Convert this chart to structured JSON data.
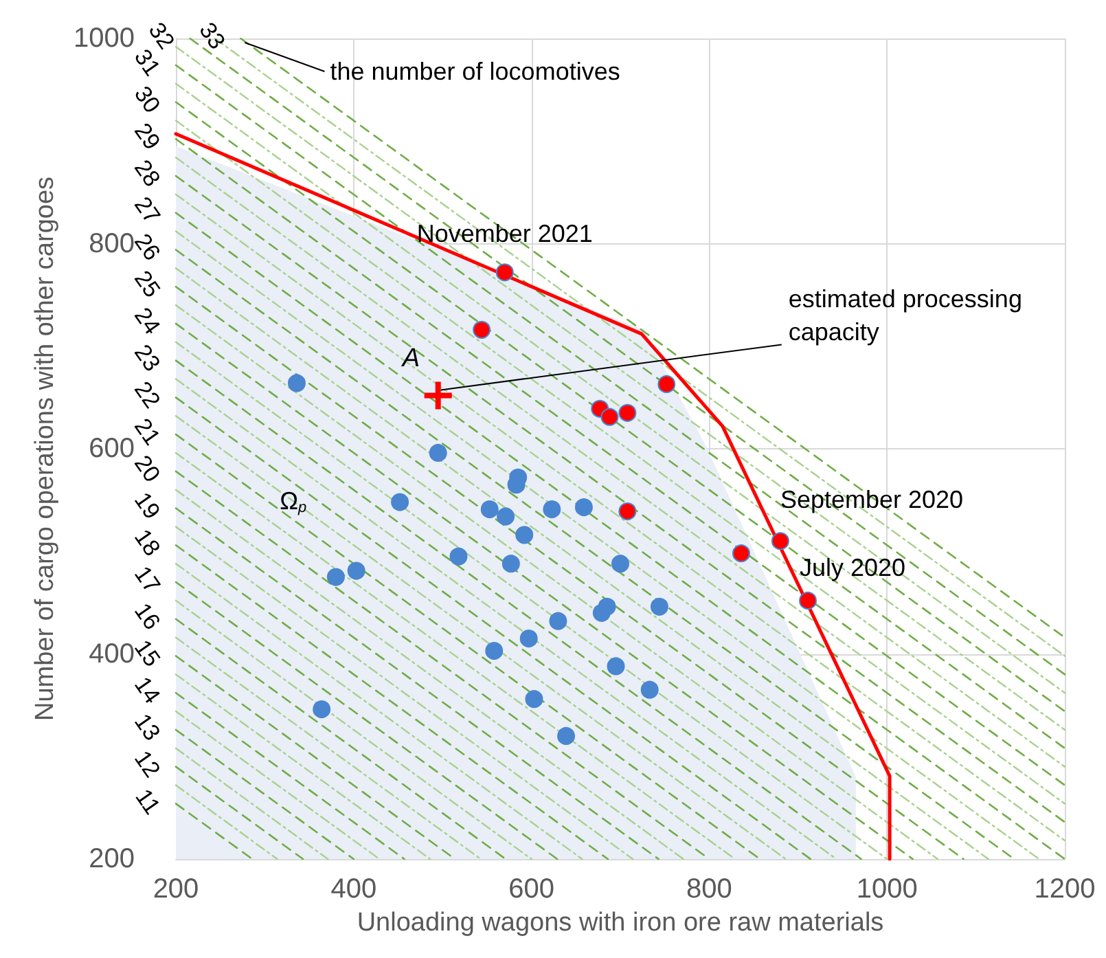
{
  "chart_data": {
    "type": "scatter",
    "xlabel": "Unloading wagons with iron ore raw materials",
    "ylabel": "Number of cargo operations with other cargoes",
    "xlim": [
      200,
      1200
    ],
    "ylim": [
      200,
      1000
    ],
    "xticks": [
      200,
      400,
      600,
      800,
      1000,
      1200
    ],
    "yticks": [
      200,
      400,
      600,
      800,
      1000
    ],
    "grid": true,
    "annotations": [
      {
        "text": "the number of locomotives",
        "x": 273,
        "y": 1000
      },
      {
        "text": "November 2021",
        "x": 570,
        "y": 772
      },
      {
        "text": "estimated processing capacity",
        "x": 495,
        "y": 652
      },
      {
        "text": "September 2020",
        "x": 880,
        "y": 510
      },
      {
        "text": "July 2020",
        "x": 911,
        "y": 452
      },
      {
        "text": "Ω$_{p}$",
        "x": 332,
        "y": 549
      }
    ],
    "series": [
      {
        "type": "area",
        "color": "#e9eef7",
        "marker": "none",
        "x": [
          200,
          726,
          798,
          965,
          965
        ],
        "values": [
          895,
          716,
          600,
          280,
          200
        ]
      },
      {
        "type": "line",
        "name": "11",
        "color": "#70ad47",
        "line_style": "dashed",
        "marker": "none",
        "x": [
          200,
          286
        ],
        "values": [
          254,
          200
        ]
      },
      {
        "type": "line",
        "name": "12",
        "color": "#70ad47",
        "line_style": "dashed",
        "marker": "none",
        "x": [
          200,
          343
        ],
        "values": [
          290,
          200
        ]
      },
      {
        "type": "line",
        "name": "13",
        "color": "#70ad47",
        "line_style": "dashed",
        "marker": "none",
        "x": [
          200,
          400
        ],
        "values": [
          326,
          200
        ]
      },
      {
        "type": "line",
        "name": "14",
        "color": "#70ad47",
        "line_style": "dashed",
        "marker": "none",
        "x": [
          200,
          457
        ],
        "values": [
          362,
          200
        ]
      },
      {
        "type": "line",
        "name": "15",
        "color": "#70ad47",
        "line_style": "dashed",
        "marker": "none",
        "x": [
          200,
          514
        ],
        "values": [
          398,
          200
        ]
      },
      {
        "type": "line",
        "name": "16",
        "color": "#70ad47",
        "line_style": "dashed",
        "marker": "none",
        "x": [
          200,
          571
        ],
        "values": [
          434,
          200
        ]
      },
      {
        "type": "line",
        "name": "17",
        "color": "#70ad47",
        "line_style": "dashed",
        "marker": "none",
        "x": [
          200,
          629
        ],
        "values": [
          470,
          200
        ]
      },
      {
        "type": "line",
        "name": "18",
        "color": "#70ad47",
        "line_style": "dashed",
        "marker": "none",
        "x": [
          200,
          686
        ],
        "values": [
          506,
          200
        ]
      },
      {
        "type": "line",
        "name": "19",
        "color": "#70ad47",
        "line_style": "dashed",
        "marker": "none",
        "x": [
          200,
          743
        ],
        "values": [
          542,
          200
        ]
      },
      {
        "type": "line",
        "name": "20",
        "color": "#70ad47",
        "line_style": "dashed",
        "marker": "none",
        "x": [
          200,
          800
        ],
        "values": [
          578,
          200
        ]
      },
      {
        "type": "line",
        "name": "21",
        "color": "#70ad47",
        "line_style": "dashed",
        "marker": "none",
        "x": [
          200,
          857
        ],
        "values": [
          614,
          200
        ]
      },
      {
        "type": "line",
        "name": "22",
        "color": "#70ad47",
        "line_style": "dashed",
        "marker": "none",
        "x": [
          200,
          914
        ],
        "values": [
          650,
          200
        ]
      },
      {
        "type": "line",
        "name": "23",
        "color": "#70ad47",
        "line_style": "dashed",
        "marker": "none",
        "x": [
          200,
          971
        ],
        "values": [
          686,
          200
        ]
      },
      {
        "type": "line",
        "name": "24",
        "color": "#70ad47",
        "line_style": "dashed",
        "marker": "none",
        "x": [
          200,
          1029
        ],
        "values": [
          722,
          200
        ]
      },
      {
        "type": "line",
        "name": "25",
        "color": "#70ad47",
        "line_style": "dashed",
        "marker": "none",
        "x": [
          200,
          1086
        ],
        "values": [
          758,
          200
        ]
      },
      {
        "type": "line",
        "name": "26",
        "color": "#70ad47",
        "line_style": "dashed",
        "marker": "none",
        "x": [
          200,
          1143
        ],
        "values": [
          794,
          200
        ]
      },
      {
        "type": "line",
        "name": "27",
        "color": "#70ad47",
        "line_style": "dashed",
        "marker": "none",
        "x": [
          200,
          1200
        ],
        "values": [
          830,
          200
        ]
      },
      {
        "type": "line",
        "name": "28",
        "color": "#70ad47",
        "line_style": "dashed",
        "marker": "none",
        "x": [
          200,
          1200
        ],
        "values": [
          866,
          236
        ]
      },
      {
        "type": "line",
        "name": "29",
        "color": "#70ad47",
        "line_style": "dashed",
        "marker": "none",
        "x": [
          200,
          1200
        ],
        "values": [
          902,
          272
        ]
      },
      {
        "type": "line",
        "name": "30",
        "color": "#70ad47",
        "line_style": "dashed",
        "marker": "none",
        "x": [
          200,
          1200
        ],
        "values": [
          938,
          308
        ]
      },
      {
        "type": "line",
        "name": "31",
        "color": "#70ad47",
        "line_style": "dashed",
        "marker": "none",
        "x": [
          200,
          1200
        ],
        "values": [
          974,
          344
        ]
      },
      {
        "type": "line",
        "name": "32",
        "color": "#70ad47",
        "line_style": "dashed",
        "marker": "none",
        "x": [
          216,
          1200
        ],
        "values": [
          1000,
          380
        ]
      },
      {
        "type": "line",
        "name": "33",
        "color": "#70ad47",
        "line_style": "dashed",
        "marker": "none",
        "x": [
          273,
          1200
        ],
        "values": [
          1000,
          416
        ]
      },
      {
        "type": "line",
        "color": "#a9d18e",
        "line_style": "dotted",
        "marker": "none",
        "x": [
          200,
          314
        ],
        "values": [
          272,
          200
        ]
      },
      {
        "type": "line",
        "color": "#a9d18e",
        "line_style": "dotted",
        "marker": "none",
        "x": [
          200,
          371
        ],
        "values": [
          308,
          200
        ]
      },
      {
        "type": "line",
        "color": "#a9d18e",
        "line_style": "dotted",
        "marker": "none",
        "x": [
          200,
          429
        ],
        "values": [
          344,
          200
        ]
      },
      {
        "type": "line",
        "color": "#a9d18e",
        "line_style": "dotted",
        "marker": "none",
        "x": [
          200,
          486
        ],
        "values": [
          380,
          200
        ]
      },
      {
        "type": "line",
        "color": "#a9d18e",
        "line_style": "dotted",
        "marker": "none",
        "x": [
          200,
          543
        ],
        "values": [
          416,
          200
        ]
      },
      {
        "type": "line",
        "color": "#a9d18e",
        "line_style": "dotted",
        "marker": "none",
        "x": [
          200,
          600
        ],
        "values": [
          452,
          200
        ]
      },
      {
        "type": "line",
        "color": "#a9d18e",
        "line_style": "dotted",
        "marker": "none",
        "x": [
          200,
          657
        ],
        "values": [
          488,
          200
        ]
      },
      {
        "type": "line",
        "color": "#a9d18e",
        "line_style": "dotted",
        "marker": "none",
        "x": [
          200,
          714
        ],
        "values": [
          524,
          200
        ]
      },
      {
        "type": "line",
        "color": "#a9d18e",
        "line_style": "dotted",
        "marker": "none",
        "x": [
          200,
          771
        ],
        "values": [
          560,
          200
        ]
      },
      {
        "type": "line",
        "color": "#a9d18e",
        "line_style": "dotted",
        "marker": "none",
        "x": [
          200,
          829
        ],
        "values": [
          596,
          200
        ]
      },
      {
        "type": "line",
        "color": "#a9d18e",
        "line_style": "dotted",
        "marker": "none",
        "x": [
          200,
          886
        ],
        "values": [
          632,
          200
        ]
      },
      {
        "type": "line",
        "color": "#a9d18e",
        "line_style": "dotted",
        "marker": "none",
        "x": [
          200,
          943
        ],
        "values": [
          668,
          200
        ]
      },
      {
        "type": "line",
        "color": "#a9d18e",
        "line_style": "dotted",
        "marker": "none",
        "x": [
          200,
          1000
        ],
        "values": [
          704,
          200
        ]
      },
      {
        "type": "line",
        "color": "#a9d18e",
        "line_style": "dotted",
        "marker": "none",
        "x": [
          200,
          1057
        ],
        "values": [
          740,
          200
        ]
      },
      {
        "type": "line",
        "color": "#a9d18e",
        "line_style": "dotted",
        "marker": "none",
        "x": [
          200,
          1114
        ],
        "values": [
          776,
          200
        ]
      },
      {
        "type": "line",
        "color": "#a9d18e",
        "line_style": "dotted",
        "marker": "none",
        "x": [
          200,
          1171
        ],
        "values": [
          812,
          200
        ]
      },
      {
        "type": "line",
        "color": "#a9d18e",
        "line_style": "dotted",
        "marker": "none",
        "x": [
          200,
          1200
        ],
        "values": [
          848,
          218
        ]
      },
      {
        "type": "line",
        "color": "#a9d18e",
        "line_style": "dotted",
        "marker": "none",
        "x": [
          200,
          1200
        ],
        "values": [
          884,
          254
        ]
      },
      {
        "type": "line",
        "color": "#a9d18e",
        "line_style": "dotted",
        "marker": "none",
        "x": [
          200,
          1200
        ],
        "values": [
          920,
          290
        ]
      },
      {
        "type": "line",
        "color": "#a9d18e",
        "line_style": "dotted",
        "marker": "none",
        "x": [
          200,
          1200
        ],
        "values": [
          956,
          326
        ]
      },
      {
        "type": "line",
        "color": "#a9d18e",
        "line_style": "dotted",
        "marker": "none",
        "x": [
          200,
          1200
        ],
        "values": [
          992,
          362
        ]
      },
      {
        "type": "line",
        "color": "#a9d18e",
        "line_style": "dotted",
        "marker": "none",
        "x": [
          244,
          1200
        ],
        "values": [
          1000,
          398
        ]
      },
      {
        "type": "line",
        "color": "#ff0000",
        "line_style": "solid",
        "marker": "none",
        "x": [
          200,
          724,
          815,
          1003,
          1003
        ],
        "values": [
          907,
          712,
          622,
          281,
          200
        ]
      },
      {
        "type": "scatter",
        "color": "#4a86d0",
        "marker": "circle",
        "x": [
          336,
          495,
          585,
          583,
          452,
          553,
          571,
          592,
          518,
          577,
          380,
          403,
          623,
          659,
          700,
          685,
          679,
          744,
          695,
          733,
          639,
          630,
          597,
          558,
          603,
          364
        ],
        "values": [
          664,
          596,
          572,
          565,
          548,
          541,
          534,
          516,
          495,
          488,
          475,
          481,
          541,
          543,
          488,
          446,
          440,
          446,
          388,
          365,
          320,
          432,
          415,
          403,
          356,
          346
        ]
      },
      {
        "type": "scatter",
        "color": "#ff0000",
        "marker": "circle",
        "x": [
          570,
          544,
          752,
          677,
          688,
          708,
          708,
          836,
          880,
          911
        ],
        "values": [
          772,
          716,
          663,
          639,
          631,
          635,
          539,
          498,
          510,
          452
        ]
      },
      {
        "type": "scatter",
        "name": "A",
        "color": "#ff0000",
        "marker": "cross",
        "x": [
          495
        ],
        "values": [
          652
        ]
      }
    ]
  }
}
